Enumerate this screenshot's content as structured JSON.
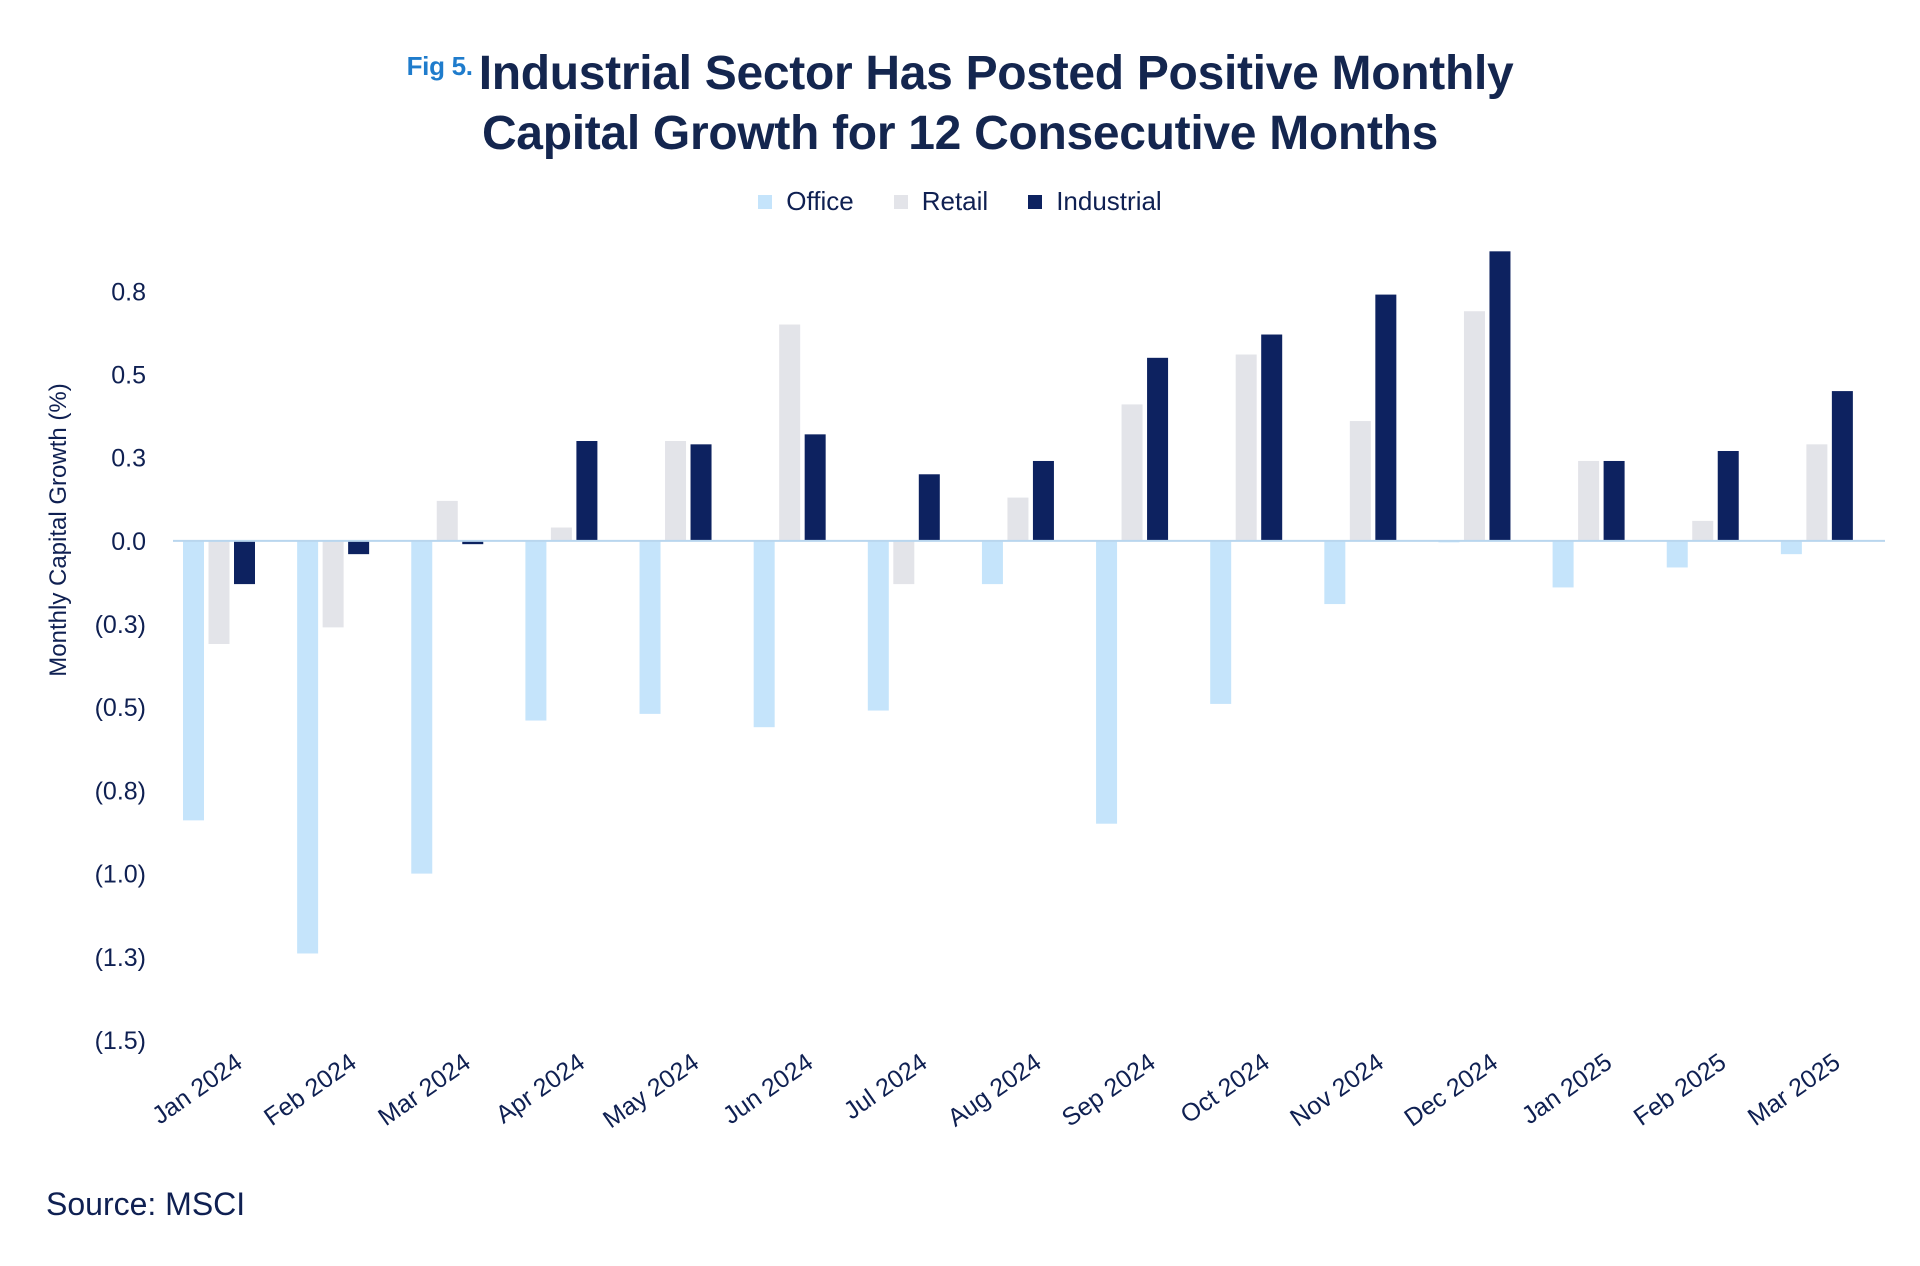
{
  "header": {
    "fig_label": "Fig 5.",
    "title_line1": "Industrial Sector Has Posted Positive Monthly",
    "title_line2": "Capital Growth for 12 Consecutive Months"
  },
  "source": "Source: MSCI",
  "colors": {
    "office": "#c5e4fb",
    "retail": "#e3e4e9",
    "industrial": "#0d2260",
    "axis": "#b9d6ee"
  },
  "chart_data": {
    "type": "bar",
    "title": "Industrial Sector Has Posted Positive Monthly Capital Growth for 12 Consecutive Months",
    "xlabel": "",
    "ylabel": "Monthly Capital Growth (%)",
    "ylim": [
      -1.5,
      0.88
    ],
    "yticks": [
      0.75,
      0.5,
      0.25,
      0.0,
      -0.25,
      -0.5,
      -0.75,
      -1.0,
      -1.25,
      -1.5
    ],
    "ytick_labels": [
      "0.8",
      "0.5",
      "0.3",
      "0.0",
      "(0.3)",
      "(0.5)",
      "(0.8)",
      "(1.0)",
      "(1.3)",
      "(1.5)"
    ],
    "legend_position": "top-center",
    "categories": [
      "Jan 2024",
      "Feb 2024",
      "Mar 2024",
      "Apr 2024",
      "May 2024",
      "Jun 2024",
      "Jul 2024",
      "Aug 2024",
      "Sep 2024",
      "Oct 2024",
      "Nov 2024",
      "Dec 2024",
      "Jan 2025",
      "Feb 2025",
      "Mar 2025"
    ],
    "series": [
      {
        "name": "Office",
        "values": [
          -0.84,
          -1.24,
          -1.0,
          -0.54,
          -0.52,
          -0.56,
          -0.51,
          -0.13,
          -0.85,
          -0.49,
          -0.19,
          0.0,
          -0.14,
          -0.08,
          -0.04
        ]
      },
      {
        "name": "Retail",
        "values": [
          -0.31,
          -0.26,
          0.12,
          0.04,
          0.3,
          0.65,
          -0.13,
          0.13,
          0.41,
          0.56,
          0.36,
          0.69,
          0.24,
          0.06,
          0.29
        ]
      },
      {
        "name": "Industrial",
        "values": [
          -0.13,
          -0.04,
          -0.01,
          0.3,
          0.29,
          0.32,
          0.2,
          0.24,
          0.55,
          0.62,
          0.74,
          0.87,
          0.24,
          0.27,
          0.45
        ]
      }
    ]
  }
}
